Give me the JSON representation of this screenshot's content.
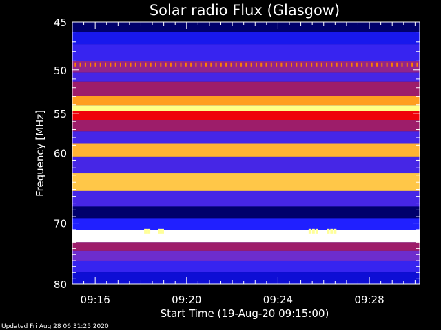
{
  "chart_data": {
    "type": "heatmap",
    "title": "Solar radio Flux (Glasgow)",
    "ylabel": "Frequency [MHz]",
    "xlabel": "Start Time (19-Aug-20 09:15:00)",
    "footer": "Updated Fri Aug 28 06:31:25 2020",
    "x_range_minutes": [
      0,
      15.2
    ],
    "y_scale": "log",
    "ylim": [
      45,
      80
    ],
    "y_ticks": [
      {
        "value": 45,
        "label": "45"
      },
      {
        "value": 50,
        "label": "50"
      },
      {
        "value": 55,
        "label": "55"
      },
      {
        "value": 60,
        "label": "60"
      },
      {
        "value": 70,
        "label": "70"
      },
      {
        "value": 80,
        "label": "80"
      }
    ],
    "y_minor_ticks": [
      46,
      47,
      48,
      49,
      51,
      52,
      53,
      54,
      56,
      57,
      58,
      59,
      61,
      62,
      63,
      64,
      65,
      66,
      67,
      68,
      69,
      71,
      72,
      73,
      74,
      75,
      76,
      77,
      78,
      79
    ],
    "x_ticks": [
      {
        "minute": 1,
        "label": "09:16"
      },
      {
        "minute": 5,
        "label": "09:20"
      },
      {
        "minute": 9,
        "label": "09:24"
      },
      {
        "minute": 13,
        "label": "09:28"
      }
    ],
    "colormap": [
      "#00003c",
      "#0000b4",
      "#2020ff",
      "#8030c0",
      "#b01030",
      "#ff0000",
      "#ff8000",
      "#ffff80",
      "#ffffff"
    ],
    "frequency_bands": [
      {
        "freq": 45.5,
        "level": 0.05
      },
      {
        "freq": 46.5,
        "level": 0.22
      },
      {
        "freq": 48.0,
        "level": 0.28
      },
      {
        "freq": 50.0,
        "level": 0.42
      },
      {
        "freq": 50.6,
        "level": 0.3
      },
      {
        "freq": 52.0,
        "level": 0.45
      },
      {
        "freq": 53.8,
        "level": 0.78
      },
      {
        "freq": 54.3,
        "level": 0.88
      },
      {
        "freq": 55.2,
        "level": 0.6
      },
      {
        "freq": 56.5,
        "level": 0.45
      },
      {
        "freq": 58.0,
        "level": 0.3
      },
      {
        "freq": 59.5,
        "level": 0.8
      },
      {
        "freq": 61.5,
        "level": 0.3
      },
      {
        "freq": 64.0,
        "level": 0.82
      },
      {
        "freq": 66.5,
        "level": 0.3
      },
      {
        "freq": 68.5,
        "level": 0.05
      },
      {
        "freq": 70.0,
        "level": 0.25
      },
      {
        "freq": 72.2,
        "level": 1.0
      },
      {
        "freq": 73.8,
        "level": 0.45
      },
      {
        "freq": 75.0,
        "level": 0.35
      },
      {
        "freq": 77.0,
        "level": 0.28
      },
      {
        "freq": 79.0,
        "level": 0.18
      }
    ],
    "interference_features": [
      {
        "freq": 49.4,
        "kind": "periodic_dots",
        "level": 0.75,
        "period_minutes": 0.22
      },
      {
        "freq": 71.2,
        "kind": "bursts",
        "level": 0.9,
        "minutes": [
          3.2,
          3.35,
          3.8,
          3.95,
          10.4,
          10.55,
          10.7,
          11.2,
          11.35,
          11.5
        ]
      }
    ]
  }
}
